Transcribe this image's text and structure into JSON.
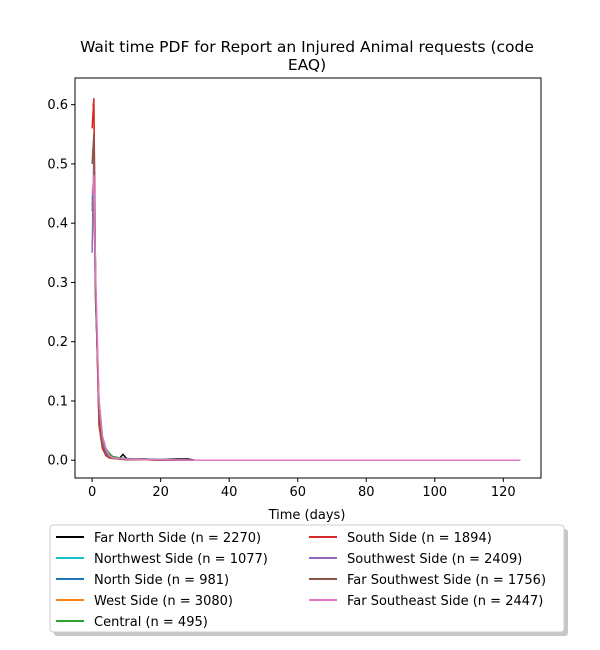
{
  "chart_data": {
    "type": "line",
    "title_line1": "Wait time PDF for Report an Injured Animal  requests (code",
    "title_line2": "EAQ)",
    "xlabel": "Time (days)",
    "ylabel": "",
    "xlim": [
      -5,
      131
    ],
    "ylim": [
      -0.03,
      0.645
    ],
    "xticks": [
      0,
      20,
      40,
      60,
      80,
      100,
      120
    ],
    "yticks": [
      0.0,
      0.1,
      0.2,
      0.3,
      0.4,
      0.5,
      0.6
    ],
    "xtick_labels": [
      "0",
      "20",
      "40",
      "60",
      "80",
      "100",
      "120"
    ],
    "ytick_labels": [
      "0.0",
      "0.1",
      "0.2",
      "0.3",
      "0.4",
      "0.5",
      "0.6"
    ],
    "grid": false,
    "legend_placement": "below-plot",
    "series": [
      {
        "name": "Far North Side (n = 2270)",
        "color": "#000000",
        "x": [
          0,
          0.5,
          1,
          2,
          3,
          4,
          5,
          6,
          7,
          8,
          9,
          10,
          12,
          15,
          20,
          25,
          28,
          30,
          50,
          125
        ],
        "y": [
          0.505,
          0.51,
          0.3,
          0.08,
          0.03,
          0.015,
          0.008,
          0.004,
          0.003,
          0.003,
          0.01,
          0.003,
          0.002,
          0.002,
          0.001,
          0.002,
          0.002,
          0.0,
          0.0,
          0.0
        ]
      },
      {
        "name": "Northwest Side (n = 1077)",
        "color": "#17becf",
        "x": [
          0,
          0.5,
          1,
          2,
          3,
          4,
          5,
          6,
          8,
          10,
          15,
          20,
          30,
          125
        ],
        "y": [
          0.44,
          0.47,
          0.28,
          0.09,
          0.035,
          0.015,
          0.008,
          0.004,
          0.003,
          0.002,
          0.001,
          0.001,
          0.0,
          0.0
        ]
      },
      {
        "name": "North Side (n = 981)",
        "color": "#1f77b4",
        "x": [
          0,
          0.5,
          1,
          2,
          3,
          4,
          5,
          6,
          8,
          10,
          15,
          20,
          30,
          125
        ],
        "y": [
          0.43,
          0.46,
          0.27,
          0.1,
          0.04,
          0.02,
          0.01,
          0.006,
          0.004,
          0.002,
          0.001,
          0.001,
          0.0,
          0.0
        ]
      },
      {
        "name": "West Side (n = 3080)",
        "color": "#ff7f0e",
        "x": [
          0,
          0.5,
          1,
          2,
          3,
          4,
          5,
          6,
          8,
          10,
          15,
          20,
          30,
          125
        ],
        "y": [
          0.6,
          0.6,
          0.3,
          0.06,
          0.02,
          0.008,
          0.004,
          0.003,
          0.002,
          0.001,
          0.001,
          0.0,
          0.0,
          0.0
        ]
      },
      {
        "name": "Central (n = 495)",
        "color": "#2ca02c",
        "x": [
          0,
          0.5,
          1,
          2,
          3,
          4,
          5,
          6,
          8,
          10,
          15,
          20,
          30,
          125
        ],
        "y": [
          0.42,
          0.46,
          0.28,
          0.1,
          0.04,
          0.02,
          0.012,
          0.006,
          0.004,
          0.002,
          0.001,
          0.001,
          0.0,
          0.0
        ]
      },
      {
        "name": "South Side (n = 1894)",
        "color": "#d62728",
        "x": [
          0,
          0.5,
          1,
          2,
          3,
          4,
          5,
          6,
          8,
          10,
          15,
          20,
          30,
          125
        ],
        "y": [
          0.56,
          0.61,
          0.3,
          0.06,
          0.02,
          0.008,
          0.004,
          0.003,
          0.002,
          0.001,
          0.001,
          0.0,
          0.0,
          0.0
        ]
      },
      {
        "name": "Southwest Side (n = 2409)",
        "color": "#9467bd",
        "x": [
          0,
          0.5,
          1,
          2,
          3,
          4,
          5,
          6,
          8,
          10,
          15,
          20,
          30,
          125
        ],
        "y": [
          0.35,
          0.52,
          0.3,
          0.08,
          0.03,
          0.012,
          0.006,
          0.004,
          0.003,
          0.002,
          0.001,
          0.001,
          0.0,
          0.0
        ]
      },
      {
        "name": "Far Southwest Side (n = 1756)",
        "color": "#8c564b",
        "x": [
          0,
          0.5,
          1,
          2,
          3,
          4,
          5,
          6,
          8,
          10,
          15,
          20,
          30,
          125
        ],
        "y": [
          0.5,
          0.55,
          0.3,
          0.07,
          0.025,
          0.01,
          0.005,
          0.003,
          0.002,
          0.001,
          0.001,
          0.0,
          0.0,
          0.0
        ]
      },
      {
        "name": "Far Southeast Side (n = 2447)",
        "color": "#e377c2",
        "x": [
          0,
          0.5,
          1,
          2,
          3,
          4,
          5,
          6,
          8,
          10,
          15,
          20,
          30,
          125
        ],
        "y": [
          0.45,
          0.48,
          0.32,
          0.1,
          0.04,
          0.02,
          0.008,
          0.004,
          0.003,
          0.002,
          0.001,
          0.001,
          0.0,
          0.0
        ]
      }
    ]
  }
}
